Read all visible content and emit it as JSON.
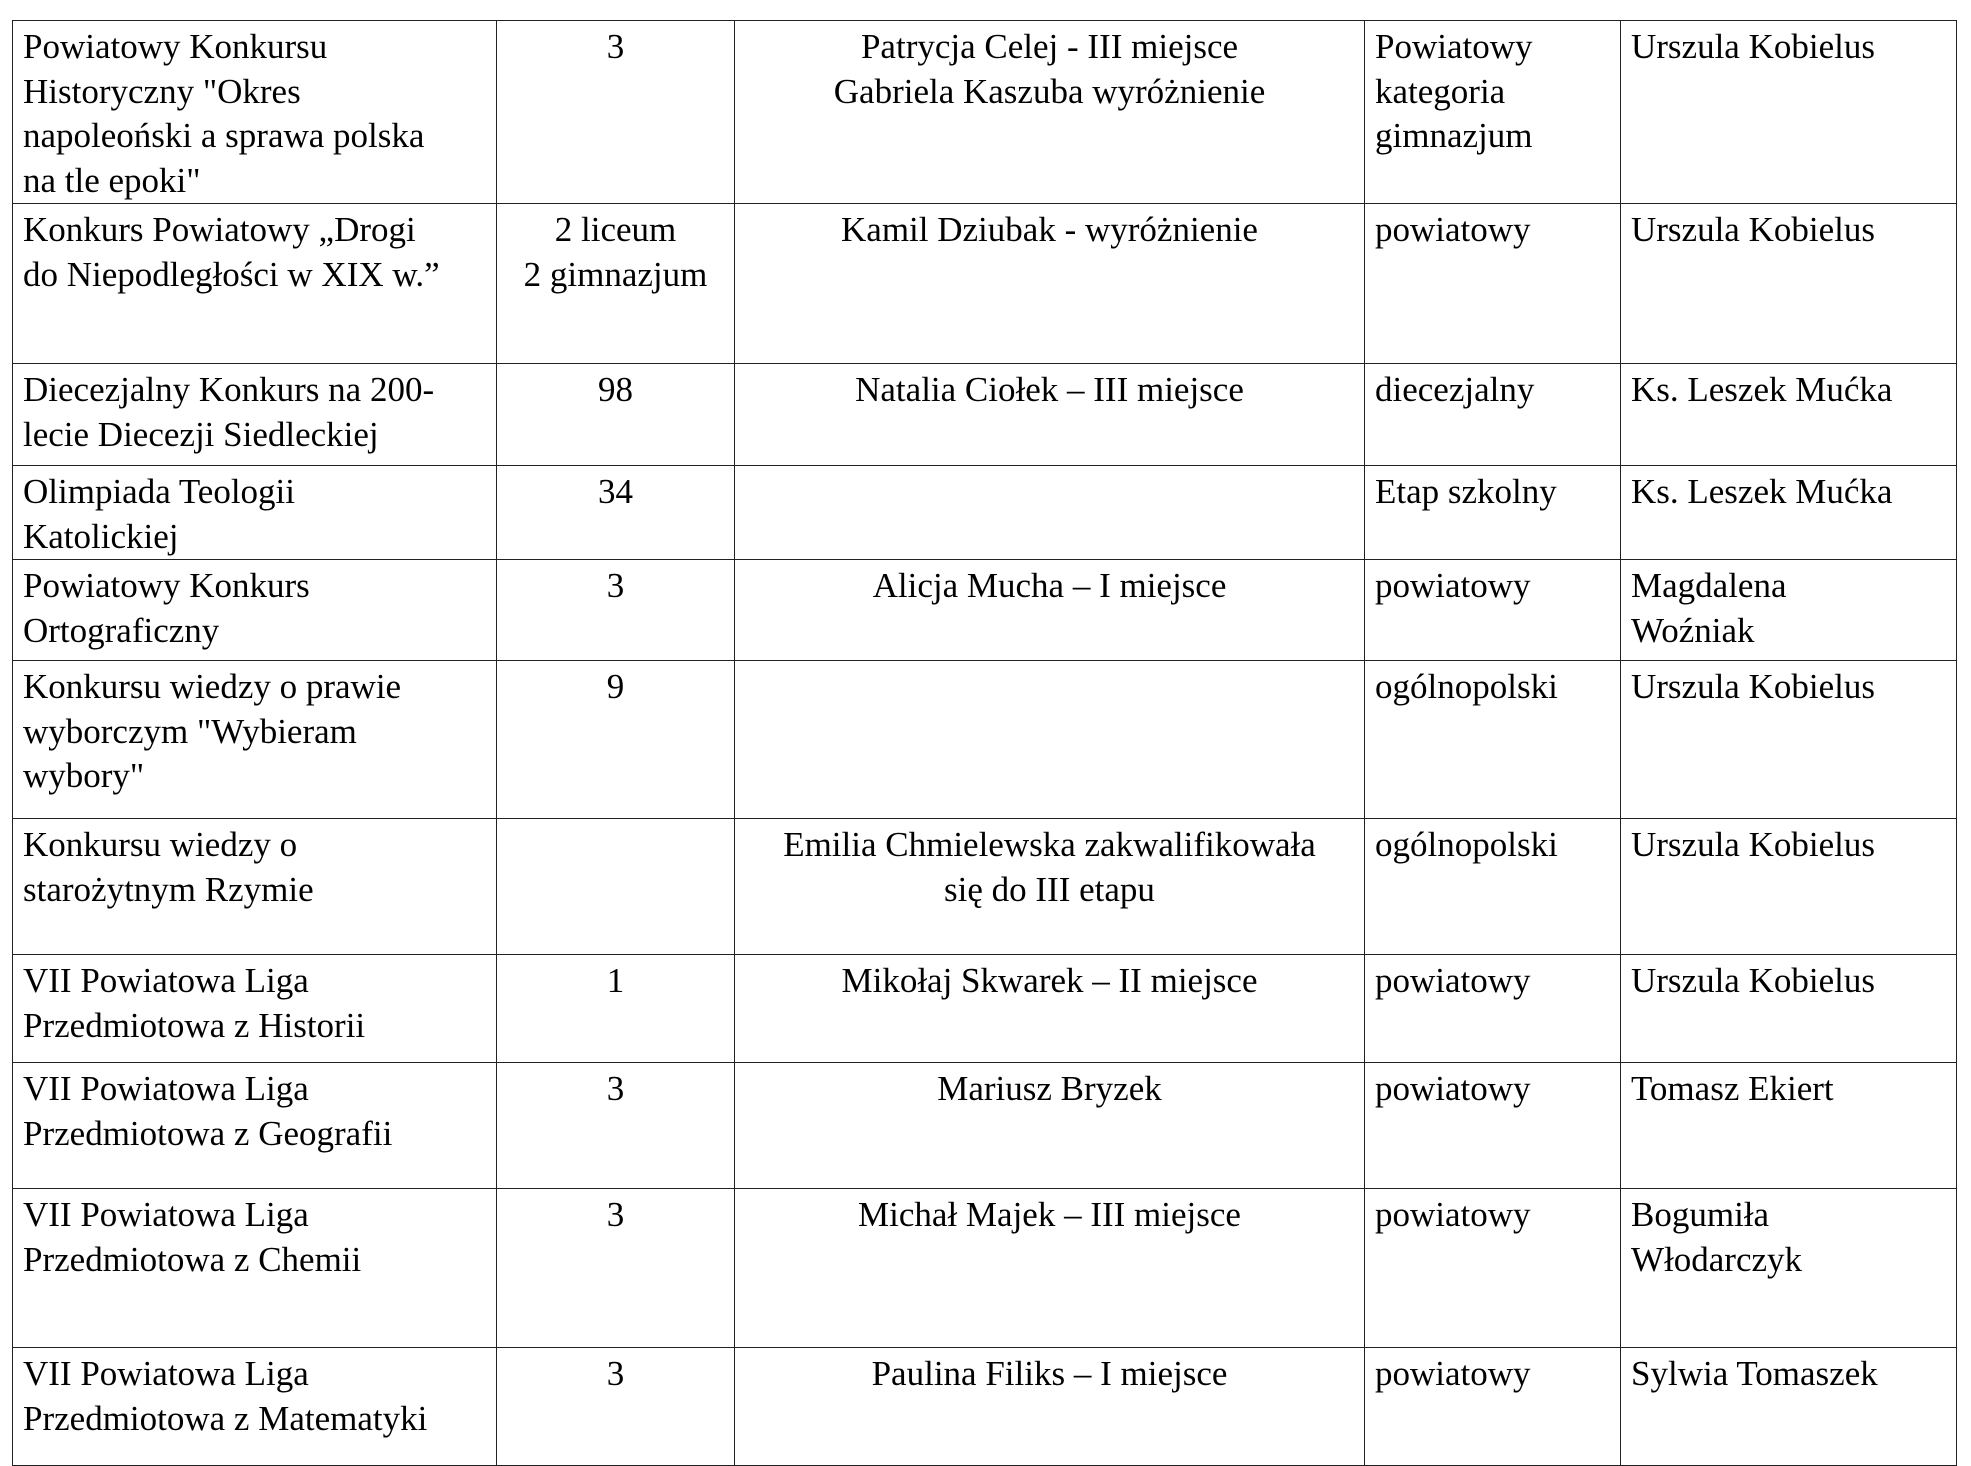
{
  "rows": [
    {
      "competition": "Powiatowy Konkursu\nHistoryczny \"Okres\nnapoleoński a sprawa polska\nna tle epoki\"",
      "participants": "3",
      "results": "Patrycja Celej - III miejsce\nGabriela Kaszuba wyróżnienie",
      "level": "Powiatowy\nkategoria\ngimnazjum",
      "teacher": "Urszula Kobielus"
    },
    {
      "competition": "Konkurs Powiatowy „Drogi\ndo Niepodległości w XIX w.”",
      "participants": "2 liceum\n2 gimnazjum",
      "results": "Kamil Dziubak - wyróżnienie",
      "level": "powiatowy",
      "teacher": "Urszula Kobielus"
    },
    {
      "competition": "Diecezjalny Konkurs na 200-\nlecie Diecezji Siedleckiej",
      "participants": "98",
      "results": "Natalia Ciołek – III miejsce",
      "level": "diecezjalny",
      "teacher": "Ks. Leszek Mućka"
    },
    {
      "competition": "Olimpiada Teologii\nKatolickiej",
      "participants": "34",
      "results": "",
      "level": "Etap szkolny",
      "teacher": "Ks. Leszek Mućka"
    },
    {
      "competition": "Powiatowy Konkurs\nOrtograficzny",
      "participants": "3",
      "results": "Alicja Mucha – I miejsce",
      "level": "powiatowy",
      "teacher": "Magdalena\nWoźniak"
    },
    {
      "competition": "Konkursu wiedzy o prawie\nwyborczym \"Wybieram\nwybory\"",
      "participants": "9",
      "results": "",
      "level": "ogólnopolski",
      "teacher": "Urszula Kobielus"
    },
    {
      "competition": "Konkursu wiedzy o\nstarożytnym Rzymie",
      "participants": "",
      "results": "Emilia Chmielewska zakwalifikowała\nsię do III etapu",
      "level": "ogólnopolski",
      "teacher": "Urszula Kobielus"
    },
    {
      "competition": "VII Powiatowa Liga\nPrzedmiotowa z Historii",
      "participants": "1",
      "results": "Mikołaj Skwarek – II miejsce",
      "level": "powiatowy",
      "teacher": "Urszula Kobielus"
    },
    {
      "competition": "VII Powiatowa Liga\nPrzedmiotowa z Geografii",
      "participants": "3",
      "results": "Mariusz Bryzek",
      "level": "powiatowy",
      "teacher": "Tomasz Ekiert"
    },
    {
      "competition": "VII Powiatowa Liga\nPrzedmiotowa z Chemii",
      "participants": "3",
      "results": "Michał Majek – III miejsce",
      "level": "powiatowy",
      "teacher": "Bogumiła\nWłodarczyk"
    },
    {
      "competition": "VII Powiatowa Liga\nPrzedmiotowa z Matematyki",
      "participants": "3",
      "results": "Paulina Filiks – I miejsce",
      "level": "powiatowy",
      "teacher": "Sylwia Tomaszek"
    }
  ]
}
